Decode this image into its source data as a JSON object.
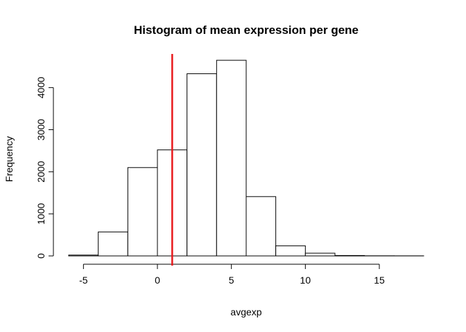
{
  "chart_data": {
    "type": "bar",
    "title": "Histogram of mean expression per gene",
    "xlabel": "avgexp",
    "ylabel": "Frequency",
    "bin_edges": [
      -6,
      -4,
      -2,
      0,
      2,
      4,
      6,
      8,
      10,
      12,
      14,
      16,
      18
    ],
    "values": [
      20,
      570,
      2100,
      2520,
      4330,
      4650,
      1410,
      240,
      65,
      10,
      3,
      2
    ],
    "xlim": [
      -6,
      18
    ],
    "ylim": [
      0,
      4800
    ],
    "x_ticks": [
      -5,
      0,
      5,
      10,
      15
    ],
    "y_ticks": [
      0,
      1000,
      2000,
      3000,
      4000
    ],
    "grid": false,
    "legend": "none",
    "reference_line": {
      "x": 1,
      "color": "#e8191c"
    },
    "colors": {
      "bar_fill": "#ffffff",
      "bar_stroke": "#000000"
    }
  }
}
